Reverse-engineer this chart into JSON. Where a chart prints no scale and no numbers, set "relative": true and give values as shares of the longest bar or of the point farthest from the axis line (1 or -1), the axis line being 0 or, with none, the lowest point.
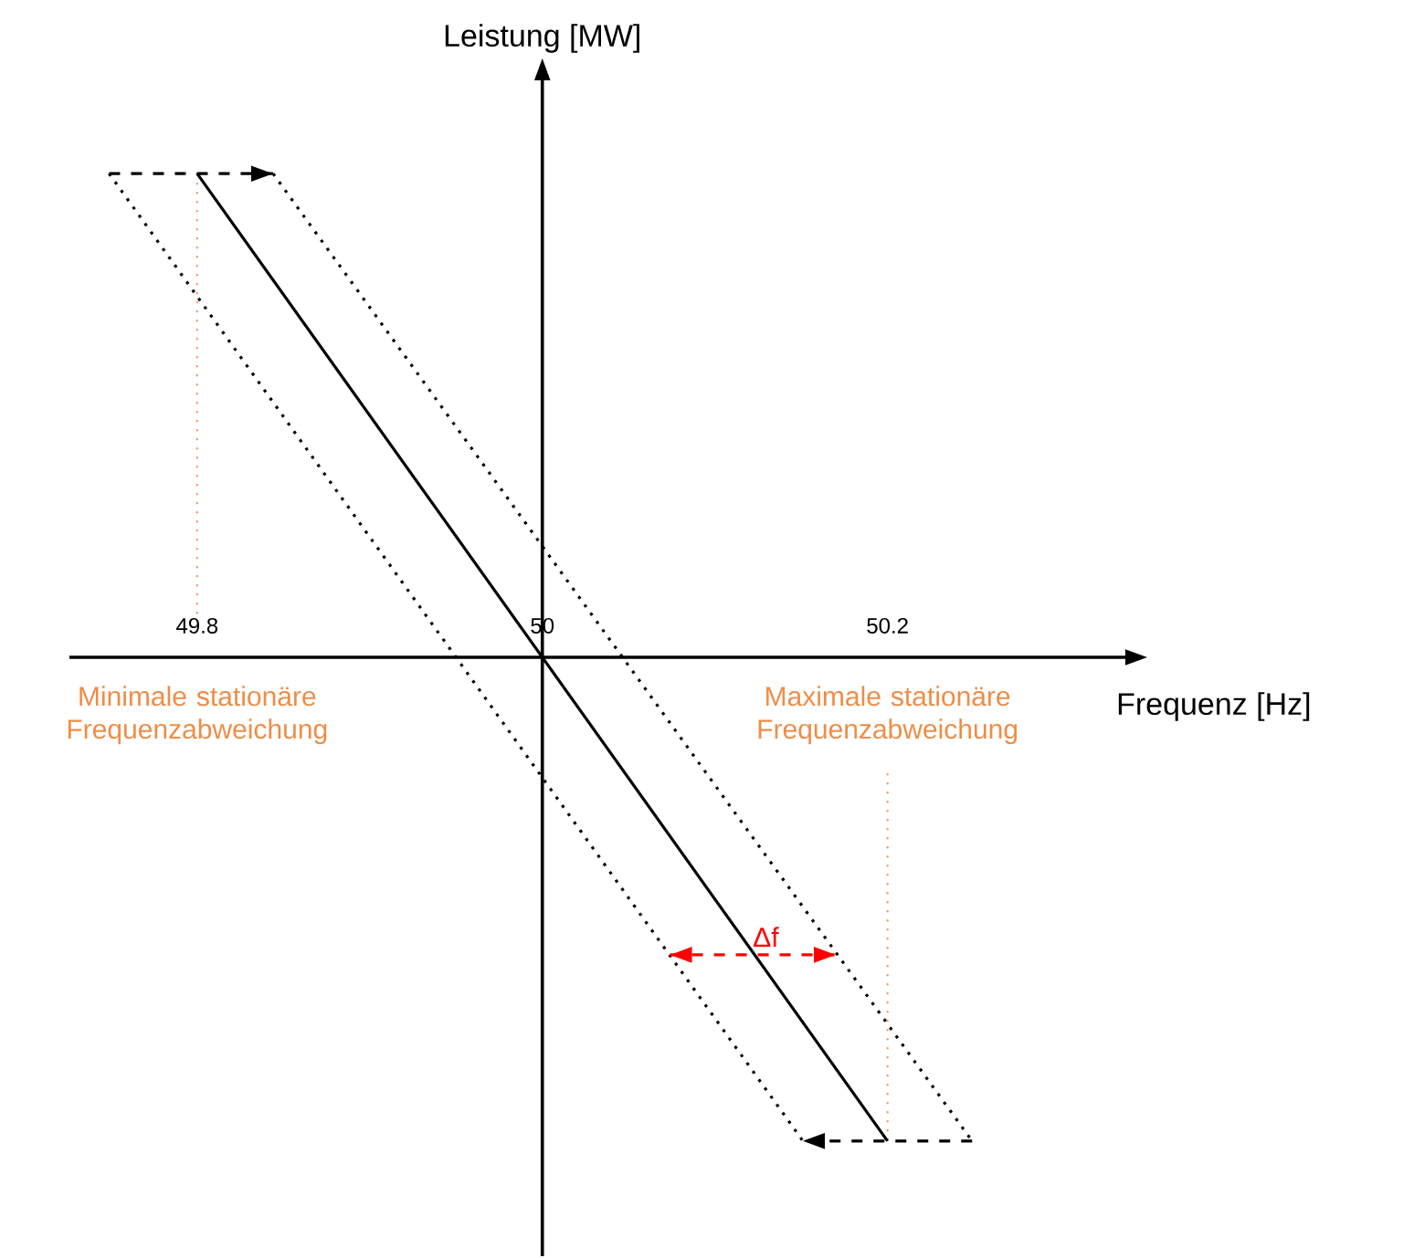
{
  "chart_data": {
    "type": "line",
    "xlabel": "Frequenz [Hz]",
    "ylabel": "Leistung [MW]",
    "relative": true,
    "xlim": [
      49.726,
      50.342
    ],
    "xticks": [
      49.8,
      50,
      50.2
    ],
    "grid": false,
    "series": [
      {
        "color": "#000000",
        "x": [
          49.8,
          50.2
        ],
        "values": [
          1,
          -1
        ],
        "line_style": "solid"
      },
      {
        "color": "#000000",
        "x": [
          49.844,
          50.249
        ],
        "values": [
          1,
          -1
        ],
        "line_style": "dotted"
      },
      {
        "color": "#000000",
        "x": [
          49.749,
          50.151
        ],
        "values": [
          1,
          -1
        ],
        "line_style": "dotted"
      },
      {
        "color": "#000000",
        "x": [
          49.749,
          49.844
        ],
        "values": [
          1,
          1
        ],
        "line_style": "dashed"
      },
      {
        "color": "#000000",
        "x": [
          50.249,
          50.151
        ],
        "values": [
          -1,
          -1
        ],
        "line_style": "dashed"
      },
      {
        "color": "#ff0000",
        "x": [
          50.074,
          50.17
        ],
        "values": [
          -0.615,
          -0.615
        ],
        "line_style": "dashed"
      }
    ],
    "ref_lines": [
      {
        "axis": "x",
        "value": 50,
        "color": "#000000",
        "line_style": "solid"
      },
      {
        "axis": "x",
        "value": 49.8,
        "label": "Minimale stationäre Frequenzabweichung",
        "color": "#f08c46",
        "line_style": "dotted"
      },
      {
        "axis": "x",
        "value": 50.2,
        "label": "Maximale stationäre Frequenzabweichung",
        "color": "#f08c46",
        "line_style": "dotted"
      }
    ],
    "annotations": [
      "Δf"
    ]
  }
}
